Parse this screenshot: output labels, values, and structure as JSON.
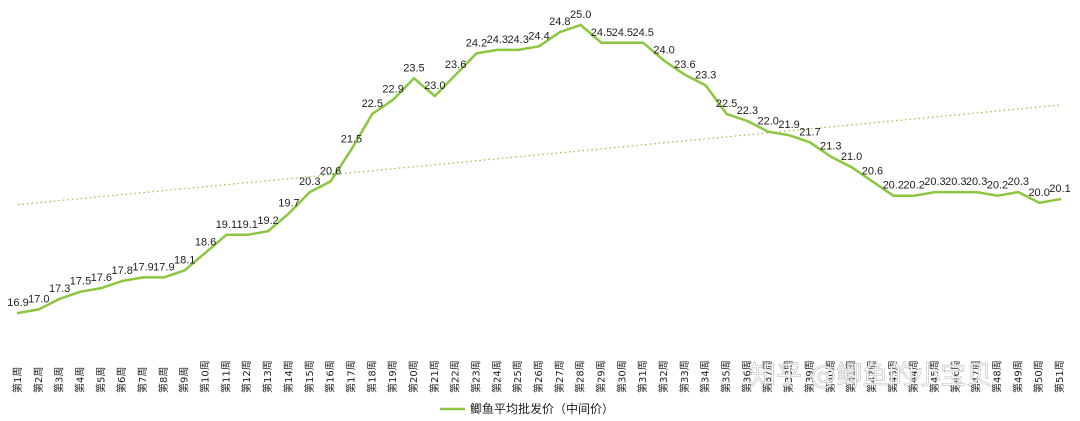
{
  "chart_data": {
    "type": "line",
    "categories": [
      "第1周",
      "第2周",
      "第3周",
      "第4周",
      "第5周",
      "第6周",
      "第7周",
      "第8周",
      "第9周",
      "第10周",
      "第11周",
      "第12周",
      "第13周",
      "第14周",
      "第15周",
      "第16周",
      "第17周",
      "第18周",
      "第19周",
      "第20周",
      "第21周",
      "第22周",
      "第23周",
      "第24周",
      "第25周",
      "第26周",
      "第27周",
      "第28周",
      "第29周",
      "第30周",
      "第31周",
      "第32周",
      "第33周",
      "第34周",
      "第35周",
      "第36周",
      "第37周",
      "第38周",
      "第39周",
      "第40周",
      "第41周",
      "第42周",
      "第43周",
      "第44周",
      "第45周",
      "第46周",
      "第47周",
      "第48周",
      "第49周",
      "第50周",
      "第51周"
    ],
    "series": [
      {
        "name": "鲫鱼平均批发价（中间价）",
        "color": "#8cc63f",
        "values": [
          16.9,
          17.0,
          17.3,
          17.5,
          17.6,
          17.8,
          17.9,
          17.9,
          18.1,
          18.6,
          19.1,
          19.1,
          19.2,
          19.7,
          20.3,
          20.6,
          21.5,
          22.5,
          22.9,
          23.5,
          23.0,
          23.6,
          24.2,
          24.3,
          24.3,
          24.4,
          24.8,
          25.0,
          24.5,
          24.5,
          24.5,
          24.0,
          23.6,
          23.3,
          22.5,
          22.3,
          22.0,
          21.9,
          21.7,
          21.3,
          21.0,
          20.6,
          20.2,
          20.2,
          20.3,
          20.3,
          20.3,
          20.2,
          20.3,
          20.0,
          20.1
        ],
        "value_labels": [
          "16.9",
          "17.0",
          "17.3",
          "17.5",
          "17.6",
          "17.8",
          "17.9",
          "17.9",
          "18.1",
          "18.6",
          "19.1",
          "19.1",
          "19.2",
          "19.7",
          "20.3",
          "20.6",
          "21.5",
          "22.5",
          "22.9",
          "23.5",
          "23.0",
          "23.6",
          "24.2",
          "24.3",
          "24.3",
          "24.4",
          "24.8",
          "25.0",
          "24.5",
          "24.5",
          "24.5",
          "24.0",
          "23.6",
          "23.3",
          "22.5",
          "22.3",
          "22.0",
          "21.9",
          "21.7",
          "21.3",
          "21.0",
          "20.6",
          "20.2",
          "20.2",
          "20.3",
          "20.3",
          "20.3",
          "20.2",
          "20.3",
          "20.0",
          "20.1"
        ]
      }
    ],
    "trendline": {
      "style": "dotted",
      "color": "#8cc63f",
      "start_value": 19.95,
      "end_value": 22.75
    },
    "ylim": [
      16.0,
      26.0
    ],
    "grid": false,
    "legend_position": "bottom"
  },
  "watermark": {
    "text": "知乎 @鲫鱼的小宝贝"
  }
}
